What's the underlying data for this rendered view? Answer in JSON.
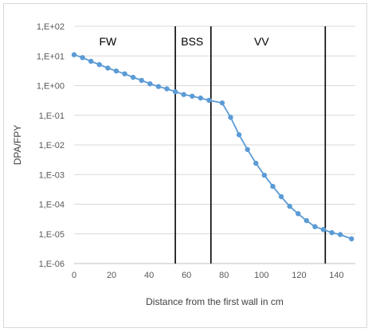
{
  "chart_data": {
    "type": "line",
    "title": "",
    "xlabel": "Distance from the first wall in cm",
    "ylabel": "DPA/FPY",
    "xlim": [
      0,
      150
    ],
    "ylim": [
      1e-06,
      100
    ],
    "yscale": "log",
    "x_ticks": [
      0,
      20,
      40,
      60,
      80,
      100,
      120,
      140
    ],
    "y_ticks": [
      {
        "value": 100,
        "label": "1,E+02"
      },
      {
        "value": 10,
        "label": "1,E+01"
      },
      {
        "value": 1,
        "label": "1,E+00"
      },
      {
        "value": 0.1,
        "label": "1,E-01"
      },
      {
        "value": 0.01,
        "label": "1,E-02"
      },
      {
        "value": 0.001,
        "label": "1,E-03"
      },
      {
        "value": 0.0001,
        "label": "1,E-04"
      },
      {
        "value": 1e-05,
        "label": "1,E-05"
      },
      {
        "value": 1e-06,
        "label": "1,E-06"
      }
    ],
    "grid": "horizontal",
    "line_color": "#5b9bd5",
    "series": [
      {
        "x": [
          0,
          4.5,
          9,
          13.5,
          18,
          22.5,
          27,
          31.5,
          36,
          40.5,
          45,
          49.5,
          54,
          58.5,
          63,
          67.5,
          72,
          79,
          83.5,
          88,
          92.5,
          97,
          101.5,
          106,
          110.5,
          115,
          119.5,
          124,
          128.5,
          133,
          137.5,
          142,
          148
        ],
        "y": [
          11,
          8.8,
          6.6,
          5.1,
          3.9,
          3.1,
          2.5,
          1.9,
          1.5,
          1.15,
          0.93,
          0.78,
          0.62,
          0.5,
          0.44,
          0.38,
          0.32,
          0.26,
          0.085,
          0.022,
          0.007,
          0.0024,
          0.00095,
          0.0004,
          0.00018,
          8.5e-05,
          4.8e-05,
          2.8e-05,
          1.75e-05,
          1.4e-05,
          1.1e-05,
          9.5e-06,
          6.8e-06
        ]
      }
    ],
    "vertical_lines": [
      54,
      73,
      134
    ],
    "regions": [
      {
        "label": "FW",
        "x": 18
      },
      {
        "label": "BSS",
        "x": 63
      },
      {
        "label": "VV",
        "x": 100
      }
    ]
  }
}
